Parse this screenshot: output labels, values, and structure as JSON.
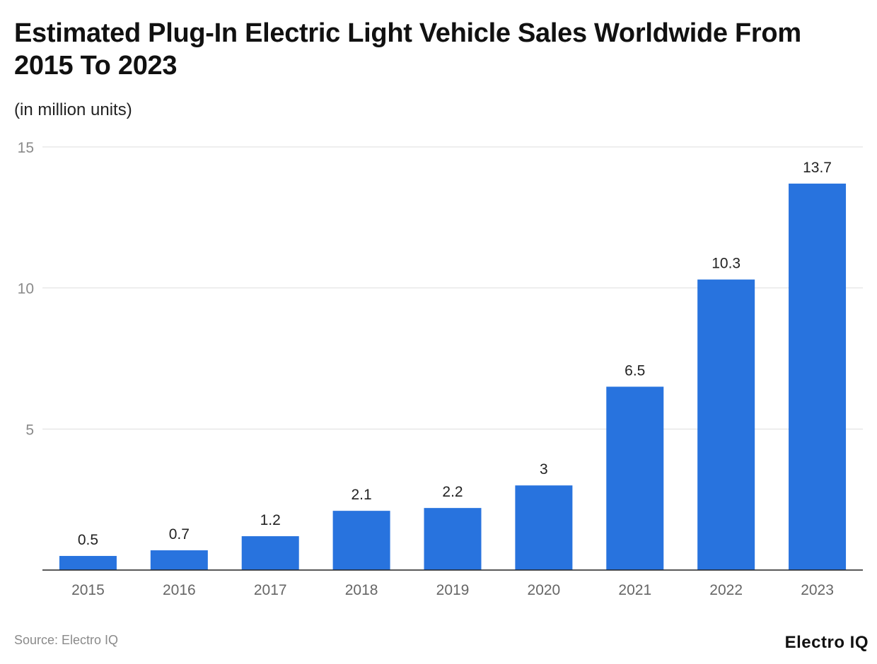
{
  "title": "Estimated Plug-In Electric Light Vehicle Sales Worldwide From 2015 To 2023",
  "subtitle": "(in million units)",
  "source": "Source: Electro IQ",
  "logo": "Electro IQ",
  "chart_data": {
    "type": "bar",
    "title": "Estimated Plug-In Electric Light Vehicle Sales Worldwide From 2015 To 2023",
    "ylabel": "(in million units)",
    "xlabel": "",
    "categories": [
      "2015",
      "2016",
      "2017",
      "2018",
      "2019",
      "2020",
      "2021",
      "2022",
      "2023"
    ],
    "values": [
      0.5,
      0.7,
      1.2,
      2.1,
      2.2,
      3,
      6.5,
      10.3,
      13.7
    ],
    "value_labels": [
      "0.5",
      "0.7",
      "1.2",
      "2.1",
      "2.2",
      "3",
      "6.5",
      "10.3",
      "13.7"
    ],
    "ylim": [
      0,
      15
    ],
    "yticks": [
      "5",
      "10",
      "15"
    ],
    "ytick_values": [
      5,
      10,
      15
    ],
    "grid": true,
    "bar_color": "#2873de"
  }
}
